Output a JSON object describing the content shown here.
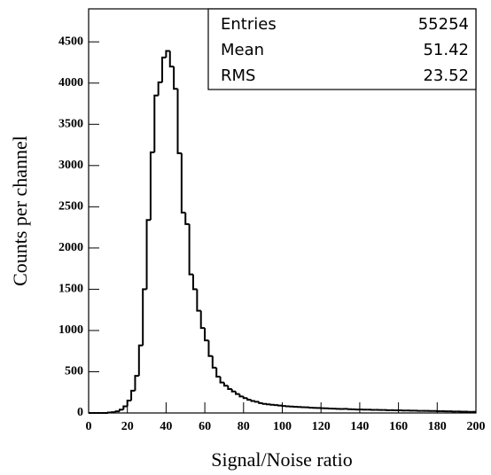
{
  "chart_data": {
    "type": "histogram",
    "x_label": "Signal/Noise ratio",
    "y_label": "Counts per channel",
    "bins": [
      0,
      2,
      4,
      6,
      8,
      10,
      12,
      14,
      16,
      18,
      20,
      22,
      24,
      26,
      28,
      30,
      32,
      34,
      36,
      38,
      40,
      42,
      44,
      46,
      48,
      50,
      52,
      54,
      56,
      58,
      60,
      62,
      64,
      66,
      68,
      70,
      72,
      74,
      76,
      78,
      80,
      82,
      84,
      86,
      88,
      90,
      92,
      94,
      96,
      98,
      100,
      102,
      104,
      106,
      108,
      110,
      112,
      114,
      116,
      118,
      120,
      122,
      124,
      126,
      128,
      130,
      132,
      134,
      136,
      138,
      140,
      142,
      144,
      146,
      148,
      150,
      152,
      154,
      156,
      158,
      160,
      162,
      164,
      166,
      168,
      170,
      172,
      174,
      176,
      178,
      180,
      182,
      184,
      186,
      188,
      190,
      192,
      194,
      196,
      198,
      200
    ],
    "values": [
      0,
      0,
      0,
      0,
      0,
      5,
      10,
      20,
      40,
      80,
      150,
      270,
      450,
      820,
      1500,
      2340,
      3160,
      3850,
      4010,
      4310,
      4390,
      4200,
      3930,
      3150,
      2430,
      2290,
      1680,
      1500,
      1240,
      1030,
      880,
      690,
      550,
      440,
      370,
      330,
      290,
      260,
      230,
      200,
      180,
      160,
      145,
      135,
      120,
      110,
      105,
      100,
      95,
      90,
      85,
      80,
      78,
      75,
      72,
      70,
      68,
      65,
      62,
      60,
      58,
      56,
      54,
      52,
      50,
      48,
      50,
      46,
      44,
      42,
      42,
      40,
      40,
      38,
      38,
      36,
      36,
      34,
      34,
      32,
      32,
      30,
      30,
      28,
      28,
      26,
      26,
      25,
      24,
      24,
      22,
      22,
      20,
      20,
      18,
      18,
      16,
      16,
      14,
      14
    ],
    "color": "#000000",
    "xlim": [
      0,
      200
    ],
    "xticks": [
      0,
      20,
      40,
      60,
      80,
      100,
      120,
      140,
      160,
      180,
      200
    ],
    "ylim": [
      0,
      4900
    ],
    "yticks": [
      0,
      500,
      1000,
      1500,
      2000,
      2500,
      3000,
      3500,
      4000,
      4500
    ],
    "stats": {
      "labels": [
        "Entries",
        "Mean",
        "RMS"
      ],
      "values": [
        55254,
        51.42,
        23.52
      ]
    }
  }
}
